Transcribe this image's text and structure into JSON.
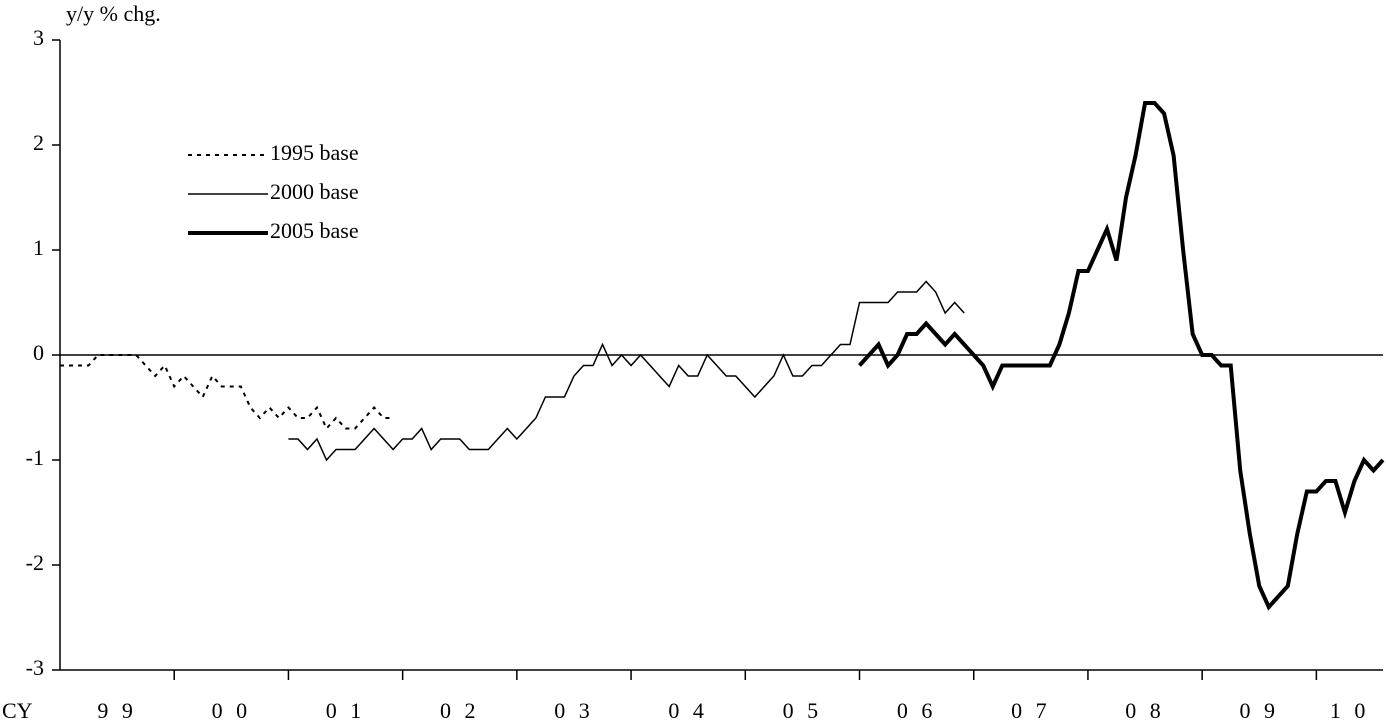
{
  "chart_data": {
    "type": "line",
    "y_label": "y/y % chg.",
    "x_label": "CY",
    "year_labels": [
      "9 9",
      "0 0",
      "0 1",
      "0 2",
      "0 3",
      "0 4",
      "0 5",
      "0 6",
      "0 7",
      "0 8",
      "0 9",
      "1 0"
    ],
    "xlim": [
      0,
      139
    ],
    "xticks": [
      12,
      24,
      36,
      48,
      60,
      72,
      84,
      96,
      108,
      120,
      132
    ],
    "ylim": [
      -3,
      3
    ],
    "yticks": [
      -3,
      -2,
      -1,
      0,
      1,
      2,
      3
    ],
    "zero_line": true,
    "legend": "upper left",
    "series": [
      {
        "name": "1995 base",
        "color": "#000000",
        "style": "dotted",
        "x": [
          0,
          1,
          2,
          3,
          4,
          5,
          6,
          7,
          8,
          9,
          10,
          11,
          12,
          13,
          14,
          15,
          16,
          17,
          18,
          19,
          20,
          21,
          22,
          23,
          24,
          25,
          26,
          27,
          28,
          29,
          30,
          31,
          32,
          33,
          34,
          35
        ],
        "values": [
          -0.1,
          -0.1,
          -0.1,
          -0.1,
          0.0,
          0.0,
          0.0,
          0.0,
          0.0,
          -0.1,
          -0.2,
          -0.1,
          -0.3,
          -0.2,
          -0.3,
          -0.4,
          -0.2,
          -0.3,
          -0.3,
          -0.3,
          -0.5,
          -0.6,
          -0.5,
          -0.6,
          -0.5,
          -0.6,
          -0.6,
          -0.5,
          -0.7,
          -0.6,
          -0.7,
          -0.7,
          -0.6,
          -0.5,
          -0.6,
          -0.6
        ]
      },
      {
        "name": "2000 base",
        "color": "#000000",
        "style": "thin",
        "x": [
          24,
          25,
          26,
          27,
          28,
          29,
          30,
          31,
          32,
          33,
          34,
          35,
          36,
          37,
          38,
          39,
          40,
          41,
          42,
          43,
          44,
          45,
          46,
          47,
          48,
          49,
          50,
          51,
          52,
          53,
          54,
          55,
          56,
          57,
          58,
          59,
          60,
          61,
          62,
          63,
          64,
          65,
          66,
          67,
          68,
          69,
          70,
          71,
          72,
          73,
          74,
          75,
          76,
          77,
          78,
          79,
          80,
          81,
          82,
          83,
          84,
          85,
          86,
          87,
          88,
          89,
          90,
          91,
          92,
          93,
          94,
          95
        ],
        "values": [
          -0.8,
          -0.8,
          -0.9,
          -0.8,
          -1.0,
          -0.9,
          -0.9,
          -0.9,
          -0.8,
          -0.7,
          -0.8,
          -0.9,
          -0.8,
          -0.8,
          -0.7,
          -0.9,
          -0.8,
          -0.8,
          -0.8,
          -0.9,
          -0.9,
          -0.9,
          -0.8,
          -0.7,
          -0.8,
          -0.7,
          -0.6,
          -0.4,
          -0.4,
          -0.4,
          -0.2,
          -0.1,
          -0.1,
          0.1,
          -0.1,
          0.0,
          -0.1,
          0.0,
          -0.1,
          -0.2,
          -0.3,
          -0.1,
          -0.2,
          -0.2,
          0.0,
          -0.1,
          -0.2,
          -0.2,
          -0.3,
          -0.4,
          -0.3,
          -0.2,
          0.0,
          -0.2,
          -0.2,
          -0.1,
          -0.1,
          0.0,
          0.1,
          0.1,
          0.5,
          0.5,
          0.5,
          0.5,
          0.6,
          0.6,
          0.6,
          0.7,
          0.6,
          0.4,
          0.5,
          0.4
        ]
      },
      {
        "name": "2005 base",
        "color": "#000000",
        "style": "thick",
        "x": [
          84,
          85,
          86,
          87,
          88,
          89,
          90,
          91,
          92,
          93,
          94,
          95,
          96,
          97,
          98,
          99,
          100,
          101,
          102,
          103,
          104,
          105,
          106,
          107,
          108,
          109,
          110,
          111,
          112,
          113,
          114,
          115,
          116,
          117,
          118,
          119,
          120,
          121,
          122,
          123,
          124,
          125,
          126,
          127,
          128,
          129,
          130,
          131,
          132,
          133,
          134,
          135,
          136,
          137,
          138,
          139
        ],
        "values": [
          -0.1,
          0.0,
          0.1,
          -0.1,
          0.0,
          0.2,
          0.2,
          0.3,
          0.2,
          0.1,
          0.2,
          0.1,
          0.0,
          -0.1,
          -0.3,
          -0.1,
          -0.1,
          -0.1,
          -0.1,
          -0.1,
          -0.1,
          0.1,
          0.4,
          0.8,
          0.8,
          1.0,
          1.2,
          0.9,
          1.5,
          1.9,
          2.4,
          2.4,
          2.3,
          1.9,
          1.0,
          0.2,
          0.0,
          0.0,
          -0.1,
          -0.1,
          -1.1,
          -1.7,
          -2.2,
          -2.4,
          -2.3,
          -2.2,
          -1.7,
          -1.3,
          -1.3,
          -1.2,
          -1.2,
          -1.5,
          -1.2,
          -1.0,
          -1.1,
          -1.0
        ]
      }
    ]
  }
}
